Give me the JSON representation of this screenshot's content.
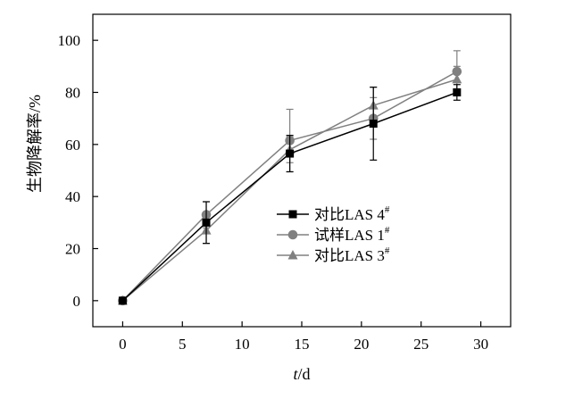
{
  "chart_data": {
    "type": "line",
    "xlabel": "t/d",
    "ylabel": "生物降解率/%",
    "xlim": [
      -2.5,
      32.5
    ],
    "ylim": [
      -10,
      110
    ],
    "xticks": [
      0,
      5,
      10,
      15,
      20,
      25,
      30
    ],
    "yticks": [
      0,
      20,
      40,
      60,
      80,
      100
    ],
    "grid": false,
    "legend_position": "center-right",
    "x": [
      0,
      7,
      14,
      21,
      28
    ],
    "series": [
      {
        "name": "对比LAS 4#",
        "label": "对比LAS 4",
        "superscript": "#",
        "marker": "square",
        "color": "#000000",
        "values": [
          0,
          30,
          56.5,
          68,
          80
        ],
        "errors": [
          0,
          8,
          7,
          14,
          3
        ]
      },
      {
        "name": "试样LAS 1#",
        "label": "试样LAS 1",
        "superscript": "#",
        "marker": "circle",
        "color": "#808080",
        "values": [
          0,
          33,
          61.5,
          70,
          88
        ],
        "errors": [
          0,
          5,
          12,
          8,
          8
        ]
      },
      {
        "name": "对比LAS 3#",
        "label": "对比LAS 3",
        "superscript": "#",
        "marker": "triangle",
        "color": "#808080",
        "values": [
          0,
          27,
          58,
          75,
          85
        ],
        "errors": [
          0,
          5,
          5,
          7,
          5
        ]
      }
    ]
  }
}
